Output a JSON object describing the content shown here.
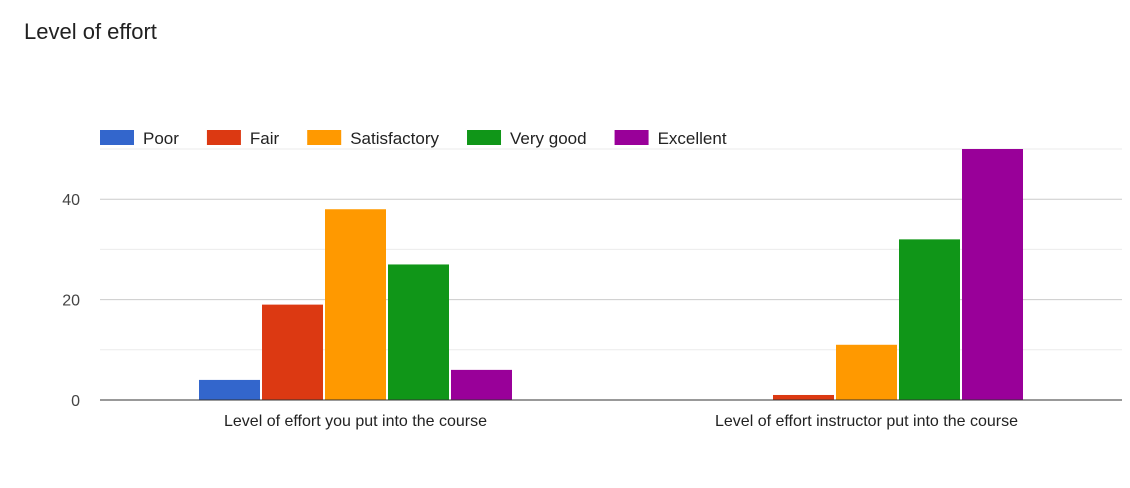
{
  "chart_data": {
    "type": "bar",
    "title": "Level of effort",
    "categories": [
      "Level of effort you put into the course",
      "Level of effort instructor put into the course"
    ],
    "series": [
      {
        "name": "Poor",
        "color": "#3366cc",
        "values": [
          4,
          0
        ]
      },
      {
        "name": "Fair",
        "color": "#dc3912",
        "values": [
          19,
          1
        ]
      },
      {
        "name": "Satisfactory",
        "color": "#ff9900",
        "values": [
          38,
          11
        ]
      },
      {
        "name": "Very good",
        "color": "#109618",
        "values": [
          27,
          32
        ]
      },
      {
        "name": "Excellent",
        "color": "#990099",
        "values": [
          6,
          50
        ]
      }
    ],
    "y_ticks": [
      "0",
      "20",
      "40"
    ],
    "y_tick_values": [
      0,
      20,
      40
    ],
    "ylim": [
      0,
      50
    ],
    "grid": true,
    "legend_position": "top-left",
    "xlabel": "",
    "ylabel": ""
  }
}
